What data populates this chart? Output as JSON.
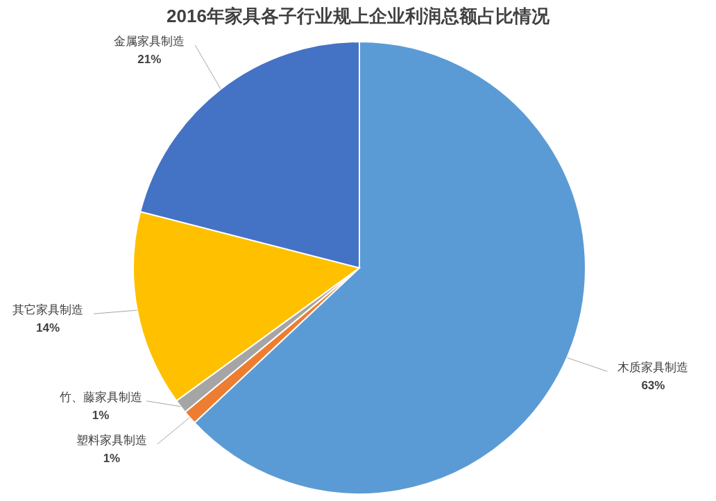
{
  "chart_data": {
    "type": "pie",
    "title": "2016年家具各子行业规上企业利润总额占比情况",
    "categories": [
      "木质家具制造",
      "塑料家具制造",
      "竹、藤家具制造",
      "其它家具制造",
      "金属家具制造"
    ],
    "values": [
      63,
      1,
      1,
      14,
      21
    ],
    "value_labels": [
      "63%",
      "1%",
      "1%",
      "14%",
      "21%"
    ],
    "colors": [
      "#5b9bd5",
      "#ed7d31",
      "#a5a5a5",
      "#ffc000",
      "#4472c4"
    ],
    "legend": false
  }
}
